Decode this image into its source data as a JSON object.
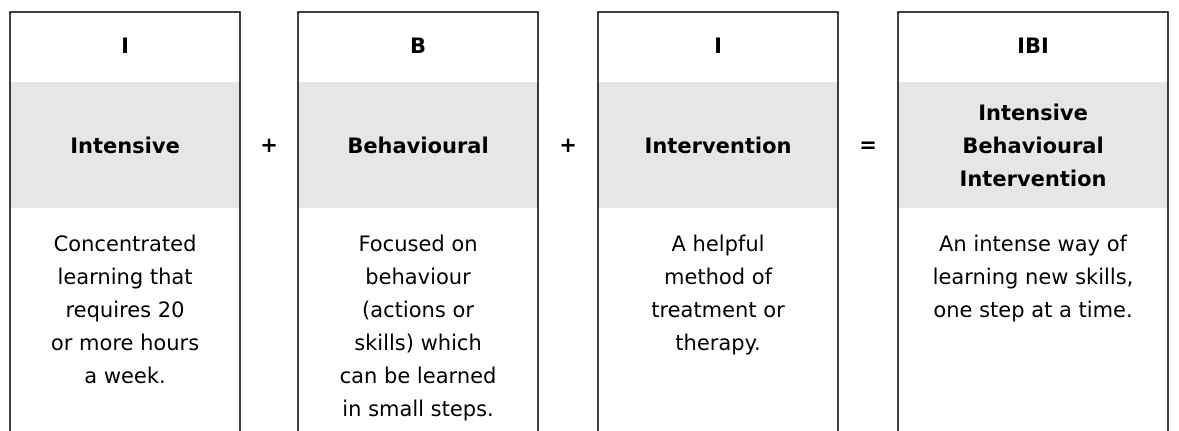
{
  "columns": [
    {
      "letter": "I",
      "term": [
        "Intensive"
      ],
      "description": [
        "Concentrated",
        "learning that",
        "requires 20",
        "or more hours",
        "a week."
      ]
    },
    {
      "letter": "B",
      "term": [
        "Behavioural"
      ],
      "description": [
        "Focused on",
        "behaviour",
        "(actions or",
        "skills) which",
        "can be learned",
        "in small steps."
      ]
    },
    {
      "letter": "I",
      "term": [
        "Intervention"
      ],
      "description": [
        "A helpful",
        "method of",
        "treatment or",
        "therapy."
      ]
    },
    {
      "letter": "IBI",
      "term": [
        "Intensive",
        "Behavioural",
        "Intervention"
      ],
      "description": [
        "An intense way of",
        "learning new skills,",
        "one step at a time."
      ]
    }
  ],
  "operators": [
    "+",
    "+",
    "="
  ]
}
